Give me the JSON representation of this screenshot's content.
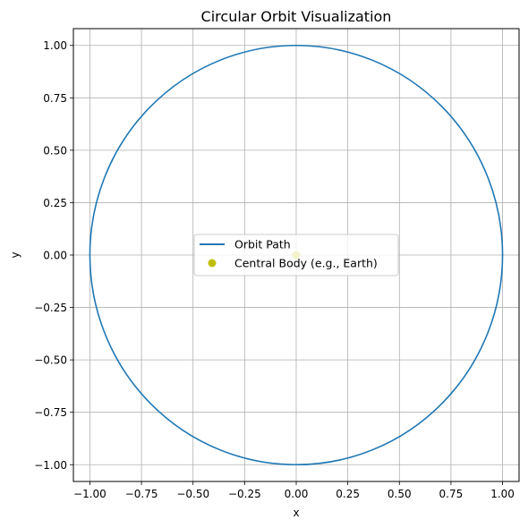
{
  "chart_data": {
    "type": "line",
    "title": "Circular Orbit Visualization",
    "xlabel": "x",
    "ylabel": "y",
    "xlim": [
      -1.08,
      1.08
    ],
    "ylim": [
      -1.08,
      1.08
    ],
    "xticks": [
      -1.0,
      -0.75,
      -0.5,
      -0.25,
      0.0,
      0.25,
      0.5,
      0.75,
      1.0
    ],
    "yticks": [
      -1.0,
      -0.75,
      -0.5,
      -0.25,
      0.0,
      0.25,
      0.5,
      0.75,
      1.0
    ],
    "xtick_labels": [
      "−1.00",
      "−0.75",
      "−0.50",
      "−0.25",
      "0.00",
      "0.25",
      "0.50",
      "0.75",
      "1.00"
    ],
    "ytick_labels": [
      "−1.00",
      "−0.75",
      "−0.50",
      "−0.25",
      "0.00",
      "0.25",
      "0.50",
      "0.75",
      "1.00"
    ],
    "grid": true,
    "aspect": "equal",
    "legend_position": "center",
    "series": [
      {
        "name": "Orbit Path",
        "kind": "line",
        "shape": "circle",
        "center": [
          0,
          0
        ],
        "radius": 1.0,
        "color": "#1f77b4"
      },
      {
        "name": "Central Body (e.g., Earth)",
        "kind": "scatter",
        "x": [
          0
        ],
        "y": [
          0
        ],
        "color": "#bfbf00"
      }
    ]
  }
}
